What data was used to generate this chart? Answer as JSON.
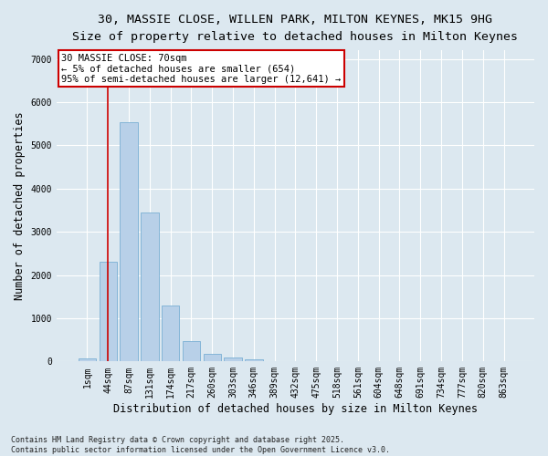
{
  "title_line1": "30, MASSIE CLOSE, WILLEN PARK, MILTON KEYNES, MK15 9HG",
  "title_line2": "Size of property relative to detached houses in Milton Keynes",
  "xlabel": "Distribution of detached houses by size in Milton Keynes",
  "ylabel": "Number of detached properties",
  "bar_color": "#b8d0e8",
  "bar_edge_color": "#7aafd4",
  "plot_bg_color": "#dce8f0",
  "fig_bg_color": "#dce8f0",
  "categories": [
    "1sqm",
    "44sqm",
    "87sqm",
    "131sqm",
    "174sqm",
    "217sqm",
    "260sqm",
    "303sqm",
    "346sqm",
    "389sqm",
    "432sqm",
    "475sqm",
    "518sqm",
    "561sqm",
    "604sqm",
    "648sqm",
    "691sqm",
    "734sqm",
    "777sqm",
    "820sqm",
    "863sqm"
  ],
  "values": [
    70,
    2300,
    5530,
    3450,
    1300,
    480,
    185,
    95,
    45,
    15,
    0,
    0,
    0,
    0,
    0,
    0,
    0,
    0,
    0,
    0,
    0
  ],
  "ylim": [
    0,
    7200
  ],
  "yticks": [
    0,
    1000,
    2000,
    3000,
    4000,
    5000,
    6000,
    7000
  ],
  "annotation_line1": "30 MASSIE CLOSE: 70sqm",
  "annotation_line2": "← 5% of detached houses are smaller (654)",
  "annotation_line3": "95% of semi-detached houses are larger (12,641) →",
  "vline_color": "#cc0000",
  "annotation_box_edgecolor": "#cc0000",
  "footer_line1": "Contains HM Land Registry data © Crown copyright and database right 2025.",
  "footer_line2": "Contains public sector information licensed under the Open Government Licence v3.0.",
  "grid_color": "#ffffff",
  "title_fontsize": 9.5,
  "subtitle_fontsize": 9,
  "tick_fontsize": 7,
  "ylabel_fontsize": 8.5,
  "xlabel_fontsize": 8.5,
  "footer_fontsize": 6,
  "annotation_fontsize": 7.5
}
